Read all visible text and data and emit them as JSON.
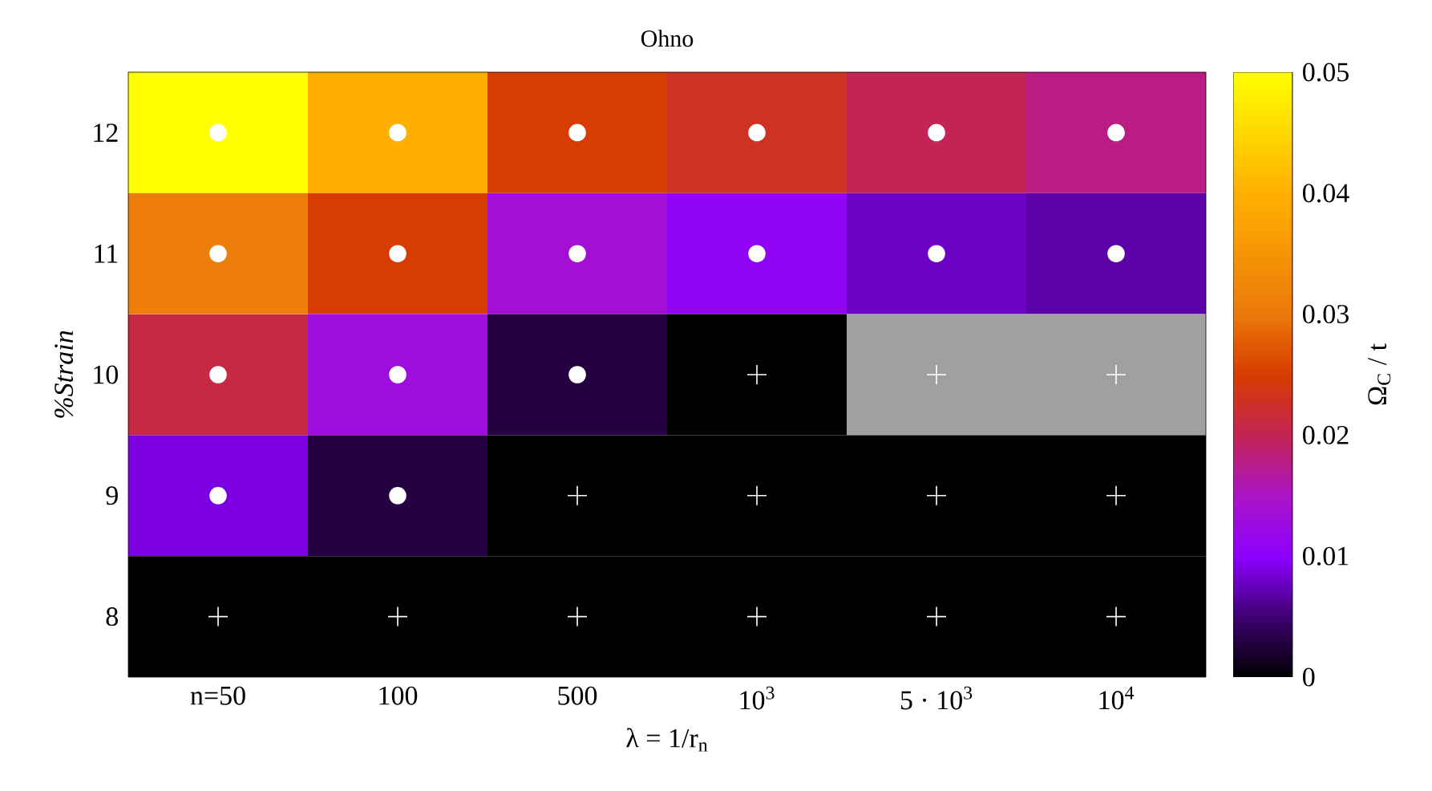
{
  "chart_data": {
    "type": "heatmap",
    "title": "Ohno",
    "xlabel": "λ = 1/r$_{n}$",
    "ylabel": "%Strain",
    "clabel": "Ω$_{C}$ / t",
    "categories": [
      "n=50",
      "100",
      "500",
      "10$^{3}$",
      "5 · 10$^{3}$",
      "10$^{4}$"
    ],
    "ylim": [
      7.5,
      12.5
    ],
    "yticks": [
      8,
      9,
      10,
      11,
      12
    ],
    "cells": [
      [
        0.05,
        0.04,
        0.025,
        0.023,
        0.02,
        0.018
      ],
      [
        0.031,
        0.025,
        0.014,
        0.011,
        0.008,
        0.007
      ],
      [
        0.021,
        0.013,
        0.003,
        0,
        null,
        null
      ],
      [
        0.009,
        0.003,
        0,
        0,
        0,
        0
      ],
      [
        0,
        0,
        0,
        0,
        0,
        0
      ]
    ],
    "clim": [
      0,
      0.05
    ],
    "cticks": [
      0,
      0.01,
      0.02,
      0.03,
      0.04,
      0.05
    ],
    "series": [
      {
        "type": "scatter",
        "marker": "circle",
        "color": "#ffffff",
        "x": [
          "n=50",
          "100",
          "500",
          "10$^{3}$",
          "5 · 10$^{3}$",
          "10$^{4}$",
          "n=50",
          "100",
          "500",
          "10$^{3}$",
          "5 · 10$^{3}$",
          "10$^{4}$",
          "n=50",
          "100",
          "500",
          "n=50",
          "100"
        ],
        "values": [
          12,
          12,
          12,
          12,
          12,
          12,
          11,
          11,
          11,
          11,
          11,
          11,
          10,
          10,
          10,
          9,
          9
        ]
      },
      {
        "type": "scatter",
        "marker": "cross",
        "color": "#ffffff",
        "x": [
          "10$^{3}$",
          "5 · 10$^{3}$",
          "10$^{4}$",
          "500",
          "10$^{3}$",
          "5 · 10$^{3}$",
          "10$^{4}$",
          "n=50",
          "100",
          "500",
          "10$^{3}$",
          "5 · 10$^{3}$",
          "10$^{4}$"
        ],
        "values": [
          10,
          10,
          10,
          9,
          9,
          9,
          9,
          8,
          8,
          8,
          8,
          8,
          8
        ]
      }
    ]
  }
}
